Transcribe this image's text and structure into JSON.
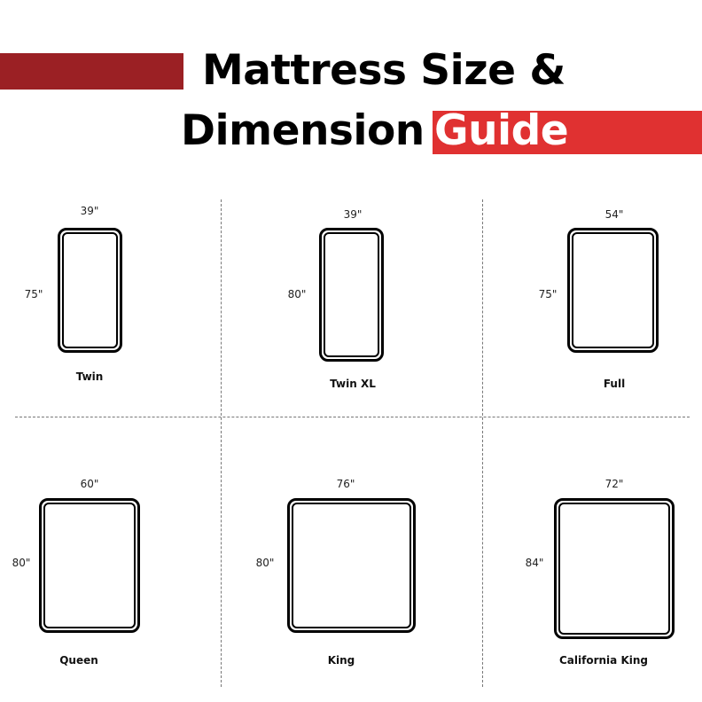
{
  "title": {
    "line1": "Mattress Size &",
    "line2": "Dimension",
    "highlight": "Guide"
  },
  "colors": {
    "dark_red": "#9b2024",
    "red": "#e03131"
  },
  "mattresses": [
    {
      "name": "Twin",
      "width": "39\"",
      "length": "75\""
    },
    {
      "name": "Twin XL",
      "width": "39\"",
      "length": "80\""
    },
    {
      "name": "Full",
      "width": "54\"",
      "length": "75\""
    },
    {
      "name": "Queen",
      "width": "60\"",
      "length": "80\""
    },
    {
      "name": "King",
      "width": "76\"",
      "length": "80\""
    },
    {
      "name": "California King",
      "width": "72\"",
      "length": "84\""
    }
  ]
}
